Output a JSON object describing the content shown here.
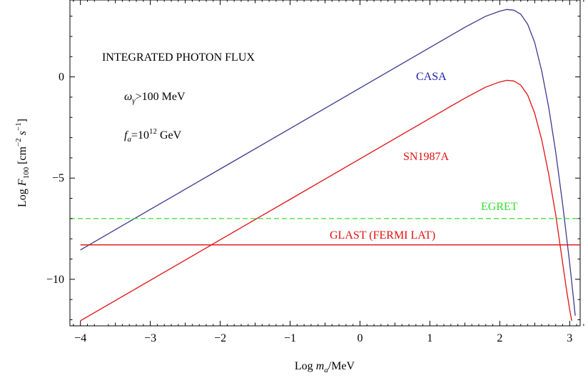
{
  "chart_data": {
    "type": "line",
    "title": "",
    "xlabel": "Log m_a/MeV",
    "xlabel_parts": {
      "prefix": "Log ",
      "var": "m",
      "sub": "a",
      "suffix": "/MeV"
    },
    "ylabel": "Log F_100 [cm^-2 s^-1]",
    "ylabel_parts": {
      "prefix": "Log ",
      "var": "F",
      "sub": "100",
      "bracket_open": " [cm",
      "sup1": "−2",
      "mid": " s",
      "sup2": "−1",
      "bracket_close": "]"
    },
    "xlim": [
      -4.15,
      3.15
    ],
    "ylim": [
      -12.3,
      3.8
    ],
    "xticks": [
      -4,
      -3,
      -2,
      -1,
      0,
      1,
      2,
      3
    ],
    "xtick_labels": [
      "−4",
      "−3",
      "−2",
      "−1",
      "0",
      "1",
      "2",
      "3"
    ],
    "yticks": [
      0,
      -5,
      -10
    ],
    "ytick_labels": [
      "0",
      "−5",
      "−10"
    ],
    "grid": false,
    "annotations": {
      "integrated": "INTEGRATED PHOTON FLUX",
      "omega": {
        "var": "ω",
        "sub": "γ",
        "text": ">100 MeV"
      },
      "fa": {
        "var": "f",
        "sub": "a",
        "text1": "=10",
        "sup": "12",
        "text2": " GeV"
      }
    },
    "series": [
      {
        "name": "CASA",
        "color": "#3a3a8c",
        "label_color": "#1a1aa8",
        "x": [
          -4.0,
          -3.0,
          -2.0,
          -1.0,
          0.0,
          1.0,
          1.5,
          1.8,
          2.0,
          2.1,
          2.2,
          2.3,
          2.4,
          2.5,
          2.6,
          2.7,
          2.8,
          2.9,
          3.0,
          3.05,
          3.08
        ],
        "y": [
          -8.55,
          -6.55,
          -4.55,
          -2.55,
          -0.55,
          1.45,
          2.45,
          3.0,
          3.25,
          3.33,
          3.3,
          3.1,
          2.6,
          1.7,
          0.3,
          -1.5,
          -3.7,
          -6.3,
          -9.2,
          -10.8,
          -11.8
        ]
      },
      {
        "name": "SN1987A",
        "color": "#e01010",
        "label_color": "#e01010",
        "x": [
          -4.0,
          -3.0,
          -2.0,
          -1.0,
          0.0,
          1.0,
          1.5,
          1.8,
          2.0,
          2.1,
          2.2,
          2.3,
          2.4,
          2.5,
          2.6,
          2.7,
          2.8,
          2.9,
          2.95,
          3.0,
          3.03
        ],
        "y": [
          -12.05,
          -10.05,
          -8.05,
          -6.05,
          -4.05,
          -2.05,
          -1.05,
          -0.5,
          -0.25,
          -0.17,
          -0.2,
          -0.4,
          -0.9,
          -1.8,
          -3.1,
          -4.8,
          -6.8,
          -9.2,
          -10.4,
          -11.5,
          -12.05
        ]
      },
      {
        "name": "EGRET",
        "color": "#33dd33",
        "label_color": "#33dd33",
        "dashed": true,
        "x": [
          -4.15,
          3.15
        ],
        "y": [
          -7.0,
          -7.0
        ]
      },
      {
        "name": "GLAST (FERMI LAT)",
        "color": "#e01010",
        "label_color": "#e01010",
        "x": [
          -4.0,
          3.15
        ],
        "y": [
          -8.3,
          -8.3
        ]
      }
    ]
  }
}
